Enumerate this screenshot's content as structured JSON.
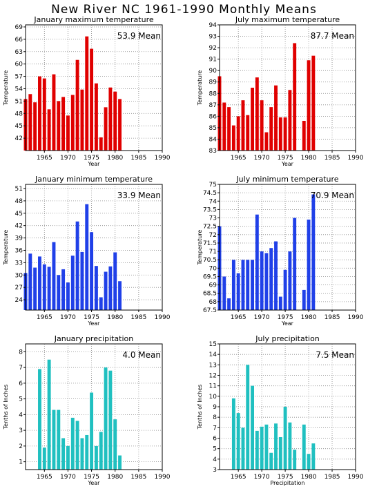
{
  "page_title": "New River NC  1961-1990 Monthly Means",
  "chart_data": [
    {
      "type": "bar",
      "title": "January maximum temperature",
      "mean_label": "53.9 Mean",
      "ylabel": "Temperature",
      "xlabel": "Year",
      "color": "#e00000",
      "xlim": [
        1961,
        1990
      ],
      "ylim": [
        39,
        69.5
      ],
      "yticks": [
        42,
        45,
        48,
        51,
        54,
        57,
        60,
        63,
        66,
        69
      ],
      "xticks": [
        1965,
        1970,
        1975,
        1980,
        1985,
        1990
      ],
      "x": [
        1961,
        1962,
        1963,
        1964,
        1965,
        1966,
        1967,
        1968,
        1969,
        1970,
        1971,
        1972,
        1973,
        1974,
        1975,
        1976,
        1977,
        1978,
        1979,
        1980,
        1981
      ],
      "values": [
        51.5,
        52.7,
        50.7,
        57.0,
        56.5,
        49.0,
        57.5,
        51.0,
        52.0,
        47.5,
        52.5,
        61.0,
        53.8,
        66.7,
        63.7,
        55.3,
        42.2,
        49.5,
        54.3,
        53.3,
        51.5
      ]
    },
    {
      "type": "bar",
      "title": "July maximum temperature",
      "mean_label": "87.7 Mean",
      "ylabel": "Temperature",
      "xlabel": "Year",
      "color": "#e00000",
      "xlim": [
        1961,
        1990
      ],
      "ylim": [
        83,
        94
      ],
      "yticks": [
        83,
        84,
        85,
        86,
        87,
        88,
        89,
        90,
        91,
        92,
        93,
        94
      ],
      "xticks": [
        1965,
        1970,
        1975,
        1980,
        1985,
        1990
      ],
      "x": [
        1961,
        1962,
        1963,
        1964,
        1965,
        1966,
        1967,
        1968,
        1969,
        1970,
        1971,
        1972,
        1973,
        1974,
        1975,
        1976,
        1977,
        1979,
        1980,
        1981
      ],
      "values": [
        89.5,
        87.2,
        86.8,
        85.2,
        86.0,
        87.4,
        86.1,
        88.5,
        89.4,
        87.4,
        84.6,
        86.8,
        88.7,
        85.9,
        85.9,
        88.3,
        92.4,
        85.6,
        90.9,
        91.3
      ]
    },
    {
      "type": "bar",
      "title": "January minimum temperature",
      "mean_label": "33.9 Mean",
      "ylabel": "Temperature",
      "xlabel": "Year",
      "color": "#2040e8",
      "xlim": [
        1961,
        1990
      ],
      "ylim": [
        21.5,
        52
      ],
      "yticks": [
        24,
        27,
        30,
        33,
        36,
        39,
        42,
        45,
        48,
        51
      ],
      "xticks": [
        1965,
        1970,
        1975,
        1980,
        1985,
        1990
      ],
      "x": [
        1961,
        1962,
        1963,
        1964,
        1965,
        1966,
        1967,
        1968,
        1969,
        1970,
        1971,
        1972,
        1973,
        1974,
        1975,
        1976,
        1977,
        1978,
        1979,
        1980,
        1981
      ],
      "values": [
        30.5,
        35.2,
        31.8,
        34.5,
        32.6,
        32.0,
        38.0,
        30.0,
        31.4,
        28.2,
        34.7,
        43.0,
        35.6,
        47.2,
        40.4,
        32.2,
        24.6,
        30.8,
        32.1,
        35.5,
        28.5
      ]
    },
    {
      "type": "bar",
      "title": "July minimum temperature",
      "mean_label": "70.9 Mean",
      "ylabel": "Temperature",
      "xlabel": "Year",
      "color": "#2040e8",
      "xlim": [
        1961,
        1990
      ],
      "ylim": [
        67.5,
        75
      ],
      "yticks": [
        67.5,
        68,
        68.5,
        69,
        69.5,
        70,
        70.5,
        71,
        71.5,
        72,
        72.5,
        73,
        73.5,
        74,
        74.5,
        75
      ],
      "xticks": [
        1965,
        1970,
        1975,
        1980,
        1985,
        1990
      ],
      "x": [
        1961,
        1962,
        1963,
        1964,
        1965,
        1966,
        1967,
        1968,
        1969,
        1970,
        1971,
        1972,
        1973,
        1974,
        1975,
        1976,
        1977,
        1979,
        1980,
        1981
      ],
      "values": [
        72.5,
        69.5,
        68.2,
        70.5,
        69.7,
        70.5,
        70.5,
        70.5,
        73.2,
        71.0,
        70.9,
        71.2,
        71.6,
        68.3,
        69.9,
        71.0,
        73.0,
        68.7,
        72.9,
        74.4
      ]
    },
    {
      "type": "bar",
      "title": "January precipitation",
      "mean_label": "4.0 Mean",
      "ylabel": "Tenths of Inches",
      "xlabel": "Year",
      "color": "#20c0c0",
      "xlim": [
        1961,
        1990
      ],
      "ylim": [
        0.5,
        8.5
      ],
      "yticks": [
        1,
        2,
        3,
        4,
        5,
        6,
        7,
        8
      ],
      "xticks": [
        1965,
        1970,
        1975,
        1980,
        1985,
        1990
      ],
      "x": [
        1964,
        1965,
        1966,
        1967,
        1968,
        1969,
        1970,
        1971,
        1972,
        1973,
        1974,
        1975,
        1976,
        1977,
        1978,
        1979,
        1980,
        1981
      ],
      "values": [
        6.9,
        1.9,
        7.5,
        4.3,
        4.3,
        2.5,
        2.0,
        3.8,
        3.6,
        2.5,
        2.7,
        5.4,
        2.0,
        2.9,
        7.0,
        6.8,
        3.7,
        1.4
      ]
    },
    {
      "type": "bar",
      "title": "July precipitation",
      "mean_label": "7.5 Mean",
      "ylabel": "Tenths of Inches",
      "xlabel": "Precipitation",
      "color": "#20c0c0",
      "xlim": [
        1961,
        1990
      ],
      "ylim": [
        3,
        15
      ],
      "yticks": [
        3,
        4,
        5,
        6,
        7,
        8,
        9,
        10,
        11,
        12,
        13,
        14,
        15
      ],
      "xticks": [
        1965,
        1970,
        1975,
        1980,
        1985,
        1990
      ],
      "x": [
        1964,
        1965,
        1966,
        1967,
        1968,
        1969,
        1970,
        1971,
        1972,
        1973,
        1974,
        1975,
        1976,
        1977,
        1979,
        1980,
        1981
      ],
      "values": [
        9.8,
        8.4,
        7.0,
        13.0,
        11.0,
        6.7,
        7.1,
        7.3,
        4.6,
        7.4,
        6.1,
        9.0,
        7.5,
        4.9,
        7.3,
        4.5,
        5.5
      ]
    }
  ]
}
